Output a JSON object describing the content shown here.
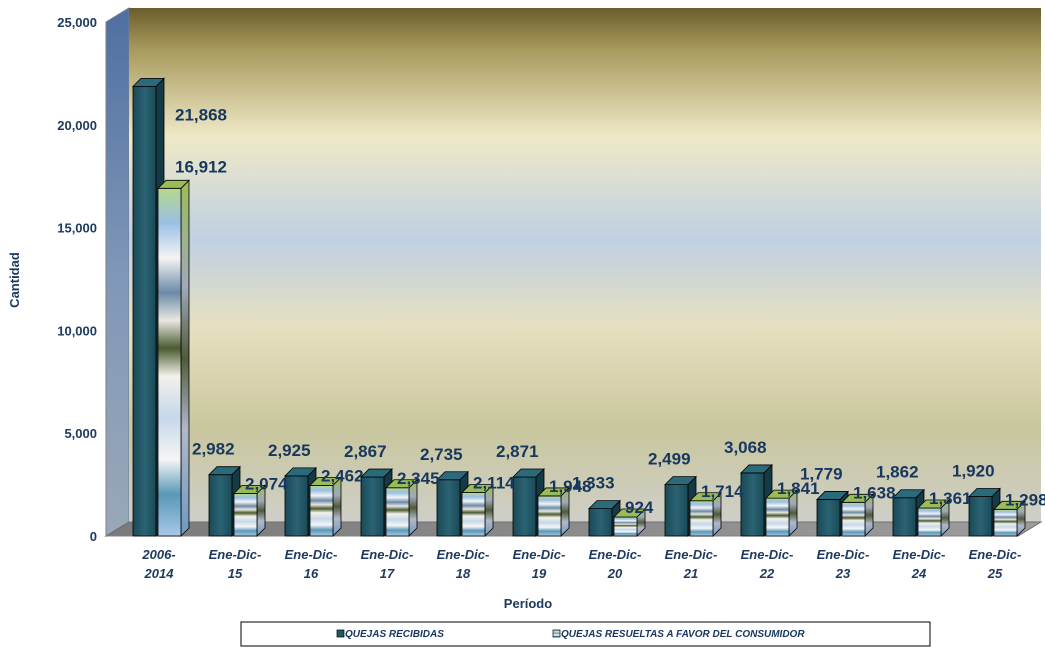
{
  "chart_data": {
    "type": "bar",
    "title": "",
    "xlabel": "Período",
    "ylabel": "Cantidad",
    "ylim": [
      0,
      25000
    ],
    "yticks": [
      "0",
      "5,000",
      "10,000",
      "15,000",
      "20,000",
      "25,000"
    ],
    "grid": false,
    "legend_position": "bottom",
    "categories": [
      [
        "2006-",
        "2014"
      ],
      [
        "Ene-Dic-",
        "15"
      ],
      [
        "Ene-Dic-",
        "16"
      ],
      [
        "Ene-Dic-",
        "17"
      ],
      [
        "Ene-Dic-",
        "18"
      ],
      [
        "Ene-Dic-",
        "19"
      ],
      [
        "Ene-Dic-",
        "20"
      ],
      [
        "Ene-Dic-",
        "21"
      ],
      [
        "Ene-Dic-",
        "22"
      ],
      [
        "Ene-Dic-",
        "23"
      ],
      [
        "Ene-Dic-",
        "24"
      ],
      [
        "Ene-Dic-",
        "25"
      ]
    ],
    "series": [
      {
        "name": "QUEJAS RECIBIDAS",
        "color": "#215968",
        "values": [
          21868,
          2982,
          2925,
          2867,
          2735,
          2871,
          1333,
          2499,
          3068,
          1779,
          1862,
          1920
        ],
        "labels": [
          "21,868",
          "2,982",
          "2,925",
          "2,867",
          "2,735",
          "2,871",
          "1,333",
          "2,499",
          "3,068",
          "1,779",
          "1,862",
          "1,920"
        ]
      },
      {
        "name": "QUEJAS RESUELTAS A FAVOR DEL CONSUMIDOR",
        "color": "#9bbb59",
        "values": [
          16912,
          2074,
          2462,
          2345,
          2114,
          1948,
          924,
          1714,
          1841,
          1638,
          1361,
          1298
        ],
        "labels": [
          "16,912",
          "2,074",
          "2,462",
          "2,345",
          "2,114",
          "1,948",
          "924",
          "1,714",
          "1,841",
          "1,638",
          "1,361",
          "1,298"
        ]
      }
    ]
  }
}
